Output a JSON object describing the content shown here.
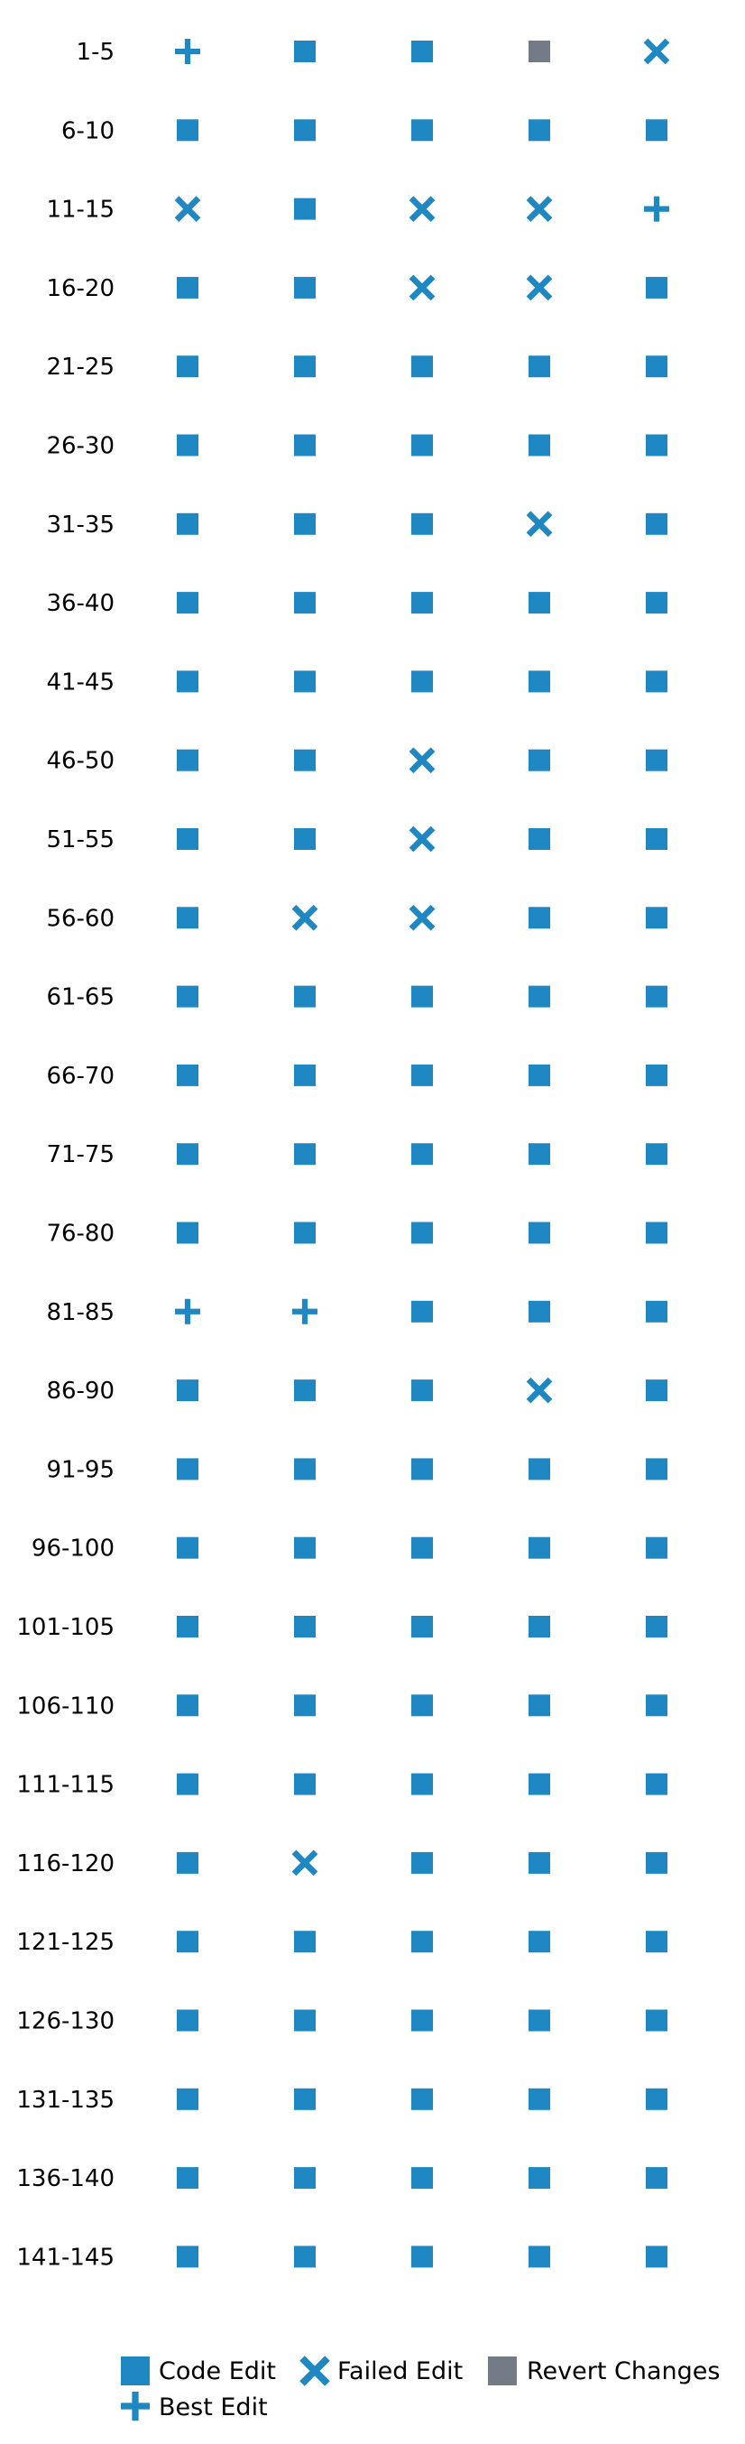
{
  "chart_data": {
    "type": "scatter",
    "title": "",
    "xlabel": "",
    "ylabel": "",
    "grid": false,
    "legend_position": "bottom",
    "columns": 5,
    "rows": [
      {
        "label": "1-5",
        "marks": [
          "best",
          "code",
          "code",
          "revert",
          "failed"
        ]
      },
      {
        "label": "6-10",
        "marks": [
          "code",
          "code",
          "code",
          "code",
          "code"
        ]
      },
      {
        "label": "11-15",
        "marks": [
          "failed",
          "code",
          "failed",
          "failed",
          "best"
        ]
      },
      {
        "label": "16-20",
        "marks": [
          "code",
          "code",
          "failed",
          "failed",
          "code"
        ]
      },
      {
        "label": "21-25",
        "marks": [
          "code",
          "code",
          "code",
          "code",
          "code"
        ]
      },
      {
        "label": "26-30",
        "marks": [
          "code",
          "code",
          "code",
          "code",
          "code"
        ]
      },
      {
        "label": "31-35",
        "marks": [
          "code",
          "code",
          "code",
          "failed",
          "code"
        ]
      },
      {
        "label": "36-40",
        "marks": [
          "code",
          "code",
          "code",
          "code",
          "code"
        ]
      },
      {
        "label": "41-45",
        "marks": [
          "code",
          "code",
          "code",
          "code",
          "code"
        ]
      },
      {
        "label": "46-50",
        "marks": [
          "code",
          "code",
          "failed",
          "code",
          "code"
        ]
      },
      {
        "label": "51-55",
        "marks": [
          "code",
          "code",
          "failed",
          "code",
          "code"
        ]
      },
      {
        "label": "56-60",
        "marks": [
          "code",
          "failed",
          "failed",
          "code",
          "code"
        ]
      },
      {
        "label": "61-65",
        "marks": [
          "code",
          "code",
          "code",
          "code",
          "code"
        ]
      },
      {
        "label": "66-70",
        "marks": [
          "code",
          "code",
          "code",
          "code",
          "code"
        ]
      },
      {
        "label": "71-75",
        "marks": [
          "code",
          "code",
          "code",
          "code",
          "code"
        ]
      },
      {
        "label": "76-80",
        "marks": [
          "code",
          "code",
          "code",
          "code",
          "code"
        ]
      },
      {
        "label": "81-85",
        "marks": [
          "best",
          "best",
          "code",
          "code",
          "code"
        ]
      },
      {
        "label": "86-90",
        "marks": [
          "code",
          "code",
          "code",
          "failed",
          "code"
        ]
      },
      {
        "label": "91-95",
        "marks": [
          "code",
          "code",
          "code",
          "code",
          "code"
        ]
      },
      {
        "label": "96-100",
        "marks": [
          "code",
          "code",
          "code",
          "code",
          "code"
        ]
      },
      {
        "label": "101-105",
        "marks": [
          "code",
          "code",
          "code",
          "code",
          "code"
        ]
      },
      {
        "label": "106-110",
        "marks": [
          "code",
          "code",
          "code",
          "code",
          "code"
        ]
      },
      {
        "label": "111-115",
        "marks": [
          "code",
          "code",
          "code",
          "code",
          "code"
        ]
      },
      {
        "label": "116-120",
        "marks": [
          "code",
          "failed",
          "code",
          "code",
          "code"
        ]
      },
      {
        "label": "121-125",
        "marks": [
          "code",
          "code",
          "code",
          "code",
          "code"
        ]
      },
      {
        "label": "126-130",
        "marks": [
          "code",
          "code",
          "code",
          "code",
          "code"
        ]
      },
      {
        "label": "131-135",
        "marks": [
          "code",
          "code",
          "code",
          "code",
          "code"
        ]
      },
      {
        "label": "136-140",
        "marks": [
          "code",
          "code",
          "code",
          "code",
          "code"
        ]
      },
      {
        "label": "141-145",
        "marks": [
          "code",
          "code",
          "code",
          "code",
          "code"
        ]
      }
    ],
    "legend": [
      {
        "key": "code",
        "label": "Code Edit",
        "shape": "square-icon",
        "color": "#1f88c2"
      },
      {
        "key": "failed",
        "label": "Failed Edit",
        "shape": "x-icon",
        "color": "#1f88c2"
      },
      {
        "key": "revert",
        "label": "Revert Changes",
        "shape": "square-icon",
        "color": "#737c86"
      },
      {
        "key": "best",
        "label": "Best Edit",
        "shape": "plus-icon",
        "color": "#1f88c2"
      }
    ]
  }
}
